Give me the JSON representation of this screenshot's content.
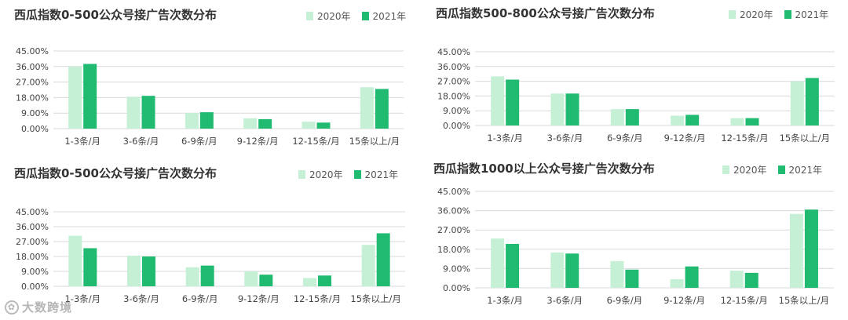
{
  "colors": {
    "y2020": "#c5f0d6",
    "y2021": "#20bb70"
  },
  "legend": {
    "series_2020": "2020年",
    "series_2021": "2021年"
  },
  "watermark": {
    "icon": "leaf-logo-icon",
    "text": "大数跨境"
  },
  "chart_data": [
    {
      "type": "bar",
      "title": "西瓜指数0-500公众号接广告次数分布",
      "categories": [
        "1-3条/月",
        "3-6条/月",
        "6-9条/月",
        "9-12条/月",
        "12-15条/月",
        "15条以上/月"
      ],
      "series": [
        {
          "name": "2020年",
          "values": [
            36,
            18.5,
            9,
            6,
            4,
            24
          ]
        },
        {
          "name": "2021年",
          "values": [
            37.5,
            19,
            9.5,
            5.5,
            3.5,
            23
          ]
        }
      ],
      "yticks": [
        "0.00%",
        "9.00%",
        "18.00%",
        "27.00%",
        "36.00%",
        "45.00%"
      ],
      "ylim": [
        0,
        45
      ],
      "grid": true,
      "legend_position": "top-right"
    },
    {
      "type": "bar",
      "title": "西瓜指数500-800公众号接广告次数分布",
      "categories": [
        "1-3条/月",
        "3-6条/月",
        "6-9条/月",
        "9-12条/月",
        "12-15条/月",
        "15条以上/月"
      ],
      "series": [
        {
          "name": "2020年",
          "values": [
            30,
            19.5,
            10,
            6,
            4.5,
            27
          ]
        },
        {
          "name": "2021年",
          "values": [
            28,
            19.5,
            10,
            6.5,
            4.5,
            29
          ]
        }
      ],
      "yticks": [
        "0.00%",
        "9.00%",
        "18.00%",
        "27.00%",
        "36.00%",
        "45.00%"
      ],
      "ylim": [
        0,
        45
      ],
      "grid": true,
      "legend_position": "top-right"
    },
    {
      "type": "bar",
      "title": "西瓜指数0-500公众号接广告次数分布",
      "categories": [
        "1-3条/月",
        "3-6条/月",
        "6-9条/月",
        "9-12条/月",
        "12-15条/月",
        "15条以上/月"
      ],
      "series": [
        {
          "name": "2020年",
          "values": [
            30.5,
            18.5,
            11.5,
            9,
            5,
            25
          ]
        },
        {
          "name": "2021年",
          "values": [
            23,
            18,
            12.5,
            7,
            6.5,
            32
          ]
        }
      ],
      "yticks": [
        "0.00%",
        "9.00%",
        "18.00%",
        "27.00%",
        "36.00%",
        "45.00%"
      ],
      "ylim": [
        0,
        45
      ],
      "grid": true,
      "legend_position": "top-right"
    },
    {
      "type": "bar",
      "title": "西瓜指数1000以上公众号接广告次数分布",
      "categories": [
        "1-3条/月",
        "3-6条/月",
        "6-9条/月",
        "9-12条/月",
        "12-15条/月",
        "15条以上/月"
      ],
      "series": [
        {
          "name": "2020年",
          "values": [
            23,
            16.5,
            12.5,
            4,
            8,
            34.5
          ]
        },
        {
          "name": "2021年",
          "values": [
            20.5,
            16,
            8.5,
            10,
            7,
            36.5
          ]
        }
      ],
      "yticks": [
        "0.00%",
        "9.00%",
        "18.00%",
        "27.00%",
        "36.00%",
        "45.00%"
      ],
      "ylim": [
        0,
        45
      ],
      "grid": true,
      "legend_position": "top-right"
    }
  ]
}
